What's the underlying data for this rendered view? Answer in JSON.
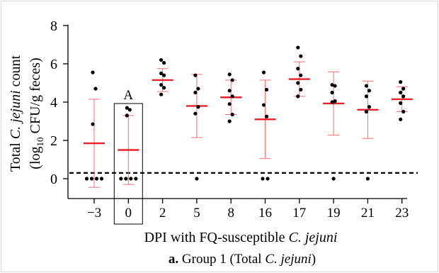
{
  "chart_data": {
    "type": "scatter",
    "subtype": "dot-plot-with-mean-and-sd",
    "panel_label": "a.",
    "caption": " Group 1 (Total ",
    "caption_italic": "C. jejuni",
    "caption_end": ")",
    "xlabel": "DPI with FQ-susceptible ",
    "xlabel_italic": "C. jejuni",
    "ylabel_line1_a": "Total ",
    "ylabel_line1_b": "C. jejuni",
    "ylabel_line1_c": " count",
    "ylabel_line2_a": "(log",
    "ylabel_line2_sub": "10",
    "ylabel_line2_b": " CFU/g feces)",
    "ylim": [
      -0.9,
      8
    ],
    "yticks": [
      "0",
      "2",
      "4",
      "6",
      "8"
    ],
    "ytick_values": [
      0,
      2,
      4,
      6,
      8
    ],
    "categories": [
      "−3",
      "0",
      "2",
      "5",
      "8",
      "16",
      "17",
      "19",
      "21",
      "23"
    ],
    "detection_limit": 0.3,
    "boxed_category_index": 1,
    "boxed_annotation": "A",
    "points": [
      [
        5.55,
        4.7,
        2.85,
        0,
        0,
        0,
        0
      ],
      [
        3.7,
        3.6,
        3.3,
        0,
        0,
        0,
        0
      ],
      [
        6.2,
        6.05,
        5.5,
        5.4,
        4.9,
        4.75,
        4.4
      ],
      [
        5.4,
        4.7,
        4.5,
        3.75,
        3.4,
        0
      ],
      [
        5.45,
        5.15,
        4.6,
        4.3,
        3.9,
        3.35,
        3.0
      ],
      [
        5.55,
        4.65,
        3.85,
        3.25,
        0,
        0
      ],
      [
        6.85,
        6.4,
        5.75,
        5.4,
        5.0,
        4.65,
        4.3
      ],
      [
        4.9,
        4.85,
        4.5,
        4.05,
        4.0,
        0
      ],
      [
        4.85,
        4.6,
        4.3,
        3.75,
        3.5,
        0
      ],
      [
        5.05,
        4.7,
        4.5,
        4.3,
        3.95,
        3.5,
        3.1
      ]
    ],
    "means": [
      1.85,
      1.5,
      5.15,
      3.8,
      4.25,
      3.1,
      5.2,
      3.93,
      3.6,
      4.15
    ],
    "sd": [
      2.3,
      1.8,
      0.6,
      1.65,
      0.9,
      2.05,
      0.9,
      1.65,
      1.5,
      0.65
    ],
    "colors": {
      "mean": "#e8202a",
      "errorbar": "#f07075",
      "points": "#000000",
      "axis": "#000000",
      "frame": "#d9d9d9"
    }
  }
}
